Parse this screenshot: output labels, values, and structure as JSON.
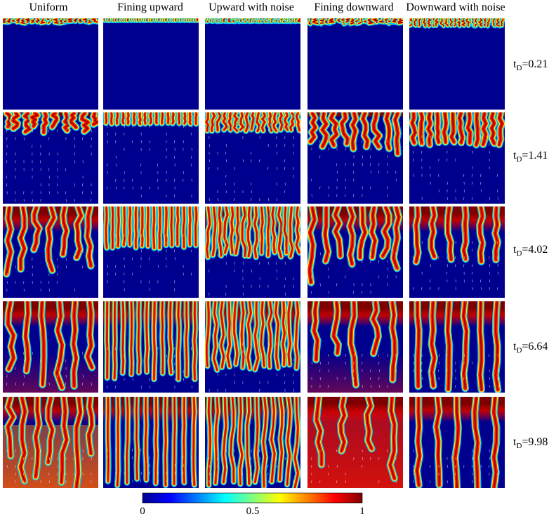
{
  "columns": [
    "Uniform",
    "Fining upward",
    "Upward with noise",
    "Fining downward",
    "Downward with noise"
  ],
  "times": [
    {
      "symbol": "t",
      "sub": "D",
      "value": "=0.21"
    },
    {
      "symbol": "t",
      "sub": "D",
      "value": "=1.41"
    },
    {
      "symbol": "t",
      "sub": "D",
      "value": "=4.02"
    },
    {
      "symbol": "t",
      "sub": "D",
      "value": "=6.64"
    },
    {
      "symbol": "t",
      "sub": "D",
      "value": "=9.98"
    }
  ],
  "colorbar": {
    "ticks": [
      "0",
      "0.5",
      "1"
    ],
    "range": [
      0,
      1
    ],
    "colormap": "jet",
    "stops": [
      "#00008f",
      "#0000ff",
      "#0080ff",
      "#00ffff",
      "#80ff80",
      "#ffff00",
      "#ff8000",
      "#ff0000",
      "#800000"
    ]
  },
  "colors": {
    "background": "#00008f",
    "dense": "#800000"
  }
}
